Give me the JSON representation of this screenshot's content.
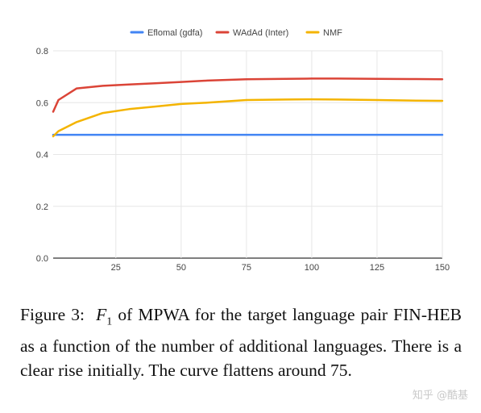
{
  "chart_data": {
    "type": "line",
    "x": [
      1,
      3,
      10,
      20,
      30,
      40,
      50,
      60,
      75,
      90,
      100,
      110,
      125,
      140,
      150
    ],
    "series": [
      {
        "name": "Eflomal (gdfa)",
        "color": "#4285F4",
        "values": [
          0.476,
          0.476,
          0.476,
          0.476,
          0.476,
          0.476,
          0.476,
          0.476,
          0.476,
          0.476,
          0.476,
          0.476,
          0.476,
          0.476,
          0.476
        ]
      },
      {
        "name": "WAdAd (Inter)",
        "color": "#DB4437",
        "values": [
          0.565,
          0.61,
          0.655,
          0.665,
          0.67,
          0.675,
          0.68,
          0.685,
          0.69,
          0.692,
          0.693,
          0.693,
          0.692,
          0.691,
          0.69
        ]
      },
      {
        "name": "NMF",
        "color": "#F4B400",
        "values": [
          0.47,
          0.49,
          0.525,
          0.56,
          0.575,
          0.585,
          0.595,
          0.6,
          0.61,
          0.612,
          0.613,
          0.612,
          0.61,
          0.608,
          0.607
        ]
      }
    ],
    "xticks": [
      "25",
      "50",
      "75",
      "100",
      "125",
      "150"
    ],
    "xtick_values": [
      25,
      50,
      75,
      100,
      125,
      150
    ],
    "yticks": [
      "0.0",
      "0.2",
      "0.4",
      "0.6",
      "0.8"
    ],
    "ytick_values": [
      0,
      0.2,
      0.4,
      0.6,
      0.8
    ],
    "xlim": [
      1,
      150
    ],
    "ylim": [
      0,
      0.8
    ],
    "grid": true,
    "legend_position": "top"
  },
  "caption": {
    "label": "Figure 3:",
    "math_symbol": "F",
    "math_subscript": "1",
    "text": " of MPWA for the target language pair FIN-HEB as a function of the number of additional languages. There is a clear rise initially. The curve flattens around 75."
  },
  "watermark": "知乎 @酷基"
}
